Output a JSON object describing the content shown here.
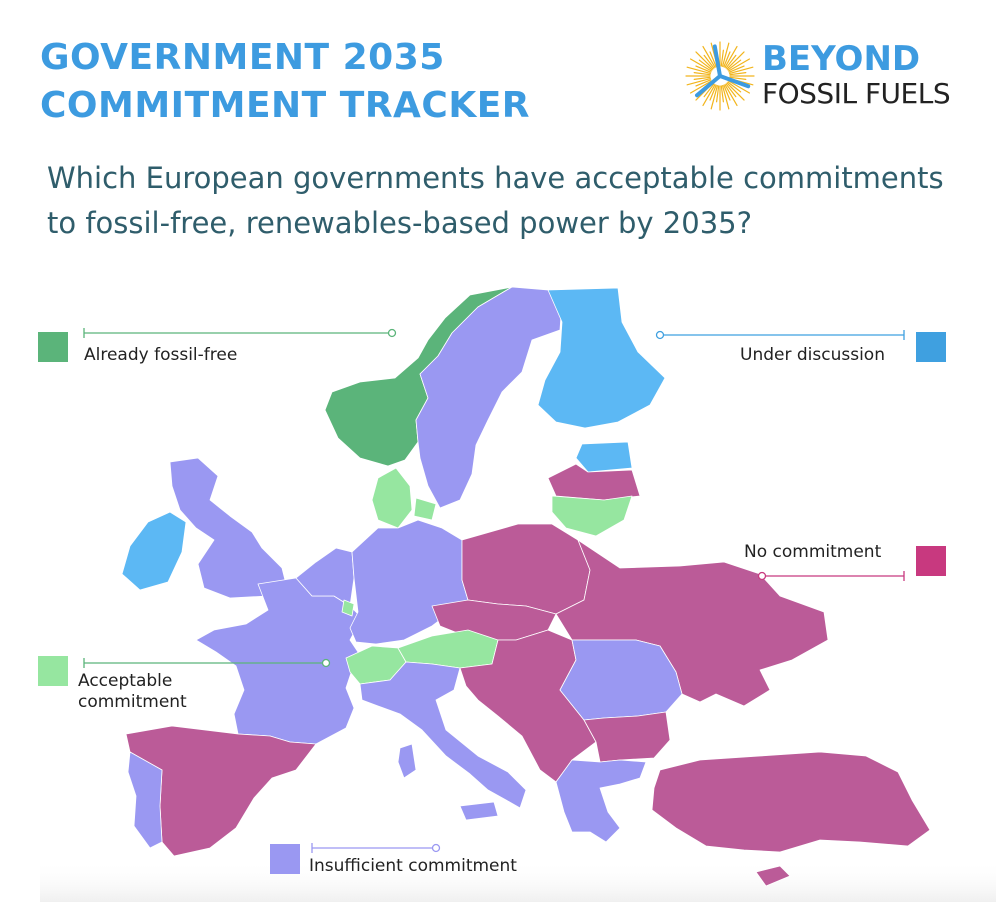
{
  "title": {
    "line1": "GOVERNMENT 2035",
    "line2": "COMMITMENT TRACKER"
  },
  "logo": {
    "line1": "BEYOND",
    "line2": "FOSSIL FUELS",
    "sun_color": "#f2b51d",
    "blade_color": "#3d9be0"
  },
  "question": "Which European governments have acceptable commitments to fossil-free, renewables-based power by 2035?",
  "colors": {
    "already_fossil_free": "#5bb47a",
    "under_discussion": "#3fa0e0",
    "acceptable": "#96e6a0",
    "no_commitment": "#c8397f",
    "insufficient": "#9a98f2",
    "map_no_commitment": "#bb5b98",
    "map_under_discussion": "#5cb8f4"
  },
  "legend": {
    "already_fossil_free": "Already fossil-free",
    "under_discussion": "Under discussion",
    "no_commitment": "No commitment",
    "acceptable_line1": "Acceptable",
    "acceptable_line2": "commitment",
    "insufficient": "Insufficient commitment"
  },
  "map_data": {
    "already_fossil_free": [
      "Norway"
    ],
    "under_discussion": [
      "Finland",
      "Ireland",
      "Estonia"
    ],
    "acceptable": [
      "Denmark",
      "Lithuania",
      "Luxembourg",
      "Switzerland",
      "Austria"
    ],
    "insufficient": [
      "Sweden",
      "United Kingdom",
      "France",
      "Belgium",
      "Netherlands",
      "Germany",
      "Italy",
      "Portugal",
      "Romania",
      "Greece"
    ],
    "no_commitment": [
      "Latvia",
      "Poland",
      "Czechia",
      "Slovakia",
      "Hungary",
      "Slovenia",
      "Croatia",
      "Bosnia and Herzegovina",
      "Serbia",
      "Montenegro",
      "Kosovo",
      "North Macedonia",
      "Albania",
      "Bulgaria",
      "Moldova",
      "Ukraine",
      "Spain",
      "Turkey",
      "Cyprus"
    ]
  }
}
